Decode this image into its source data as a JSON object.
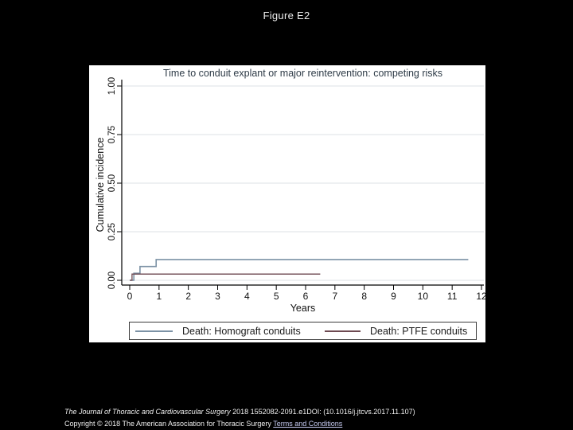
{
  "page": {
    "background_color": "#000000",
    "title": "Figure E2"
  },
  "chart_data": {
    "type": "line",
    "subtype": "step",
    "title": "Time to conduit explant or major reintervention: competing risks",
    "xlabel": "Years",
    "ylabel": "Cumulative incidence",
    "xlim": [
      0,
      12
    ],
    "ylim": [
      0,
      1.0
    ],
    "xticks": [
      0,
      1,
      2,
      3,
      4,
      5,
      6,
      7,
      8,
      9,
      10,
      11,
      12
    ],
    "ytick_labels": [
      "0.00",
      "0.25",
      "0.50",
      "0.75",
      "1.00"
    ],
    "ytick_values": [
      0,
      0.25,
      0.5,
      0.75,
      1.0
    ],
    "grid": "horizontal",
    "gridline_color": "#dde1e6",
    "axis_color": "#000000",
    "legend_position": "bottom",
    "series": [
      {
        "name": "Death: Homograft conduits",
        "color": "#7c92a5",
        "width": 1.6,
        "points": [
          [
            0,
            0
          ],
          [
            0.14,
            0
          ],
          [
            0.14,
            0.036
          ],
          [
            0.35,
            0.036
          ],
          [
            0.35,
            0.071
          ],
          [
            0.9,
            0.071
          ],
          [
            0.9,
            0.107
          ],
          [
            11.55,
            0.107
          ]
        ]
      },
      {
        "name": "Death: PTFE conduits",
        "color": "#6e4a52",
        "width": 1.3,
        "points": [
          [
            0,
            0
          ],
          [
            0.08,
            0
          ],
          [
            0.08,
            0.032
          ],
          [
            6.5,
            0.032
          ]
        ]
      }
    ]
  },
  "citation": {
    "line1_italic": "The Journal of Thoracic and Cardiovascular Surgery",
    "line1_rest": " 2018 1552082-2091.e1DOI: (10.1016/j.jtcvs.2017.11.107)",
    "line2_text": "Copyright © 2018 The American Association for Thoracic Surgery ",
    "link_label": "Terms and Conditions",
    "link_color": "#c6cbf2",
    "text_color": "#f0f0f0"
  }
}
